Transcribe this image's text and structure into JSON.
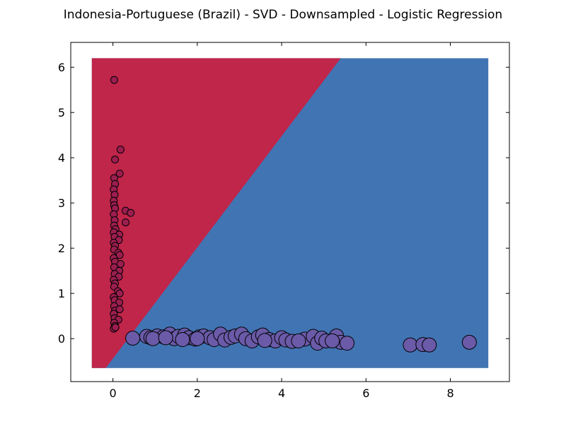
{
  "chart_data": {
    "type": "scatter",
    "title": "Indonesia-Portuguese (Brazil) - SVD - Downsampled - Logistic Regression",
    "xlabel": "",
    "ylabel": "",
    "xlim": [
      -1,
      9.4
    ],
    "ylim": [
      -0.95,
      6.55
    ],
    "xticks": [
      0,
      2,
      4,
      6,
      8
    ],
    "yticks": [
      0,
      1,
      2,
      3,
      4,
      5,
      6
    ],
    "grid": false,
    "legend": "none",
    "decision_regions": {
      "x_range": [
        -0.5,
        8.9
      ],
      "y_range": [
        -0.65,
        6.2
      ],
      "boundary": [
        [
          -0.17,
          -0.65
        ],
        [
          5.4,
          6.2
        ]
      ],
      "upper_left_color": "#c0254a",
      "lower_right_color": "#4174b3"
    },
    "series": [
      {
        "color": "#9b1e4f",
        "marker_size": "small",
        "points": [
          [
            0.03,
            5.72
          ],
          [
            0.18,
            4.18
          ],
          [
            0.05,
            3.96
          ],
          [
            0.16,
            3.65
          ],
          [
            0.03,
            3.55
          ],
          [
            0.05,
            3.42
          ],
          [
            0.02,
            3.3
          ],
          [
            0.04,
            3.18
          ],
          [
            0.02,
            3.05
          ],
          [
            0.03,
            2.95
          ],
          [
            0.05,
            2.88
          ],
          [
            0.3,
            2.83
          ],
          [
            0.42,
            2.78
          ],
          [
            0.02,
            2.75
          ],
          [
            0.04,
            2.62
          ],
          [
            0.3,
            2.57
          ],
          [
            0.03,
            2.5
          ],
          [
            0.06,
            2.42
          ],
          [
            0.02,
            2.35
          ],
          [
            0.15,
            2.3
          ],
          [
            0.04,
            2.25
          ],
          [
            0.14,
            2.18
          ],
          [
            0.02,
            2.12
          ],
          [
            0.05,
            2.05
          ],
          [
            0.03,
            1.97
          ],
          [
            0.13,
            1.9
          ],
          [
            0.16,
            1.85
          ],
          [
            0.02,
            1.78
          ],
          [
            0.05,
            1.7
          ],
          [
            0.18,
            1.65
          ],
          [
            0.03,
            1.58
          ],
          [
            0.15,
            1.5
          ],
          [
            0.04,
            1.43
          ],
          [
            0.14,
            1.37
          ],
          [
            0.02,
            1.3
          ],
          [
            0.05,
            1.22
          ],
          [
            0.03,
            1.15
          ],
          [
            0.12,
            1.05
          ],
          [
            0.16,
            1.0
          ],
          [
            0.02,
            0.92
          ],
          [
            0.04,
            0.85
          ],
          [
            0.15,
            0.8
          ],
          [
            0.03,
            0.72
          ],
          [
            0.05,
            0.62
          ],
          [
            0.16,
            0.65
          ],
          [
            0.02,
            0.55
          ],
          [
            0.04,
            0.45
          ],
          [
            0.13,
            0.42
          ],
          [
            0.03,
            0.35
          ],
          [
            0.05,
            0.28
          ],
          [
            0.02,
            0.22
          ],
          [
            0.06,
            0.25
          ]
        ]
      },
      {
        "color": "#6a5aa8",
        "marker_size": "large",
        "points": [
          [
            0.47,
            0.01
          ],
          [
            0.8,
            0.05
          ],
          [
            0.9,
            0.02
          ],
          [
            1.05,
            0.06
          ],
          [
            1.2,
            0.04
          ],
          [
            1.35,
            0.1
          ],
          [
            1.45,
            0.0
          ],
          [
            1.55,
            0.05
          ],
          [
            1.7,
            0.08
          ],
          [
            1.8,
            0.02
          ],
          [
            1.95,
            -0.01
          ],
          [
            2.05,
            0.04
          ],
          [
            2.15,
            0.06
          ],
          [
            2.3,
            0.02
          ],
          [
            2.4,
            -0.02
          ],
          [
            2.55,
            0.1
          ],
          [
            2.65,
            -0.03
          ],
          [
            2.8,
            0.03
          ],
          [
            2.9,
            0.06
          ],
          [
            3.05,
            0.1
          ],
          [
            3.15,
            0.0
          ],
          [
            3.3,
            -0.05
          ],
          [
            3.45,
            0.04
          ],
          [
            3.55,
            0.08
          ],
          [
            3.7,
            -0.02
          ],
          [
            3.85,
            -0.05
          ],
          [
            4.0,
            0.02
          ],
          [
            4.1,
            -0.03
          ],
          [
            4.25,
            -0.06
          ],
          [
            4.55,
            -0.01
          ],
          [
            4.75,
            0.05
          ],
          [
            4.85,
            -0.1
          ],
          [
            4.95,
            0.01
          ],
          [
            5.05,
            -0.05
          ],
          [
            5.3,
            0.06
          ],
          [
            5.4,
            -0.08
          ],
          [
            5.55,
            -0.1
          ],
          [
            7.05,
            -0.14
          ],
          [
            7.35,
            -0.13
          ],
          [
            7.5,
            -0.14
          ],
          [
            8.45,
            -0.08
          ],
          [
            0.95,
            0.0
          ],
          [
            1.25,
            0.02
          ],
          [
            1.65,
            -0.02
          ],
          [
            2.0,
            0.0
          ],
          [
            3.6,
            -0.04
          ],
          [
            4.4,
            -0.05
          ],
          [
            5.2,
            -0.05
          ]
        ]
      }
    ]
  }
}
